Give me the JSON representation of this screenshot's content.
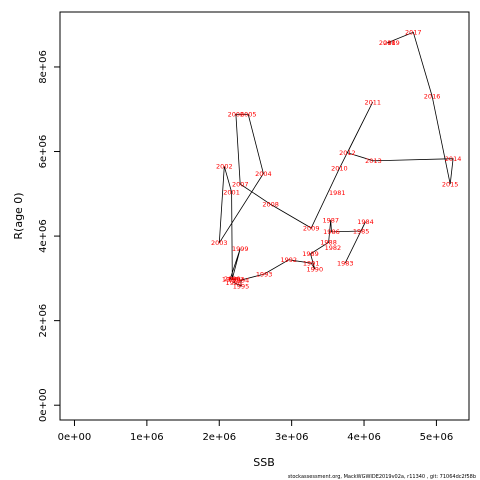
{
  "chart_data": {
    "type": "line",
    "title": "",
    "xlabel": "SSB",
    "ylabel": "R(age 0)",
    "xlim": [
      -200000,
      5450000
    ],
    "ylim": [
      -350000,
      9300000
    ],
    "x_ticks": [
      0,
      1000000,
      2000000,
      3000000,
      4000000,
      5000000
    ],
    "x_tick_labels": [
      "0e+00",
      "1e+06",
      "2e+06",
      "3e+06",
      "4e+06",
      "5e+06"
    ],
    "y_ticks": [
      0,
      2000000,
      4000000,
      6000000,
      8000000
    ],
    "y_tick_labels": [
      "0e+00",
      "2e+06",
      "4e+06",
      "6e+06",
      "8e+06"
    ],
    "grid": false,
    "legend": "none",
    "line_color": "#000000",
    "label_color": "#ff0000",
    "series": [
      {
        "points": [
          {
            "year": "1983",
            "x": 3740000,
            "y": 3360000
          },
          {
            "year": "1984",
            "x": 4020000,
            "y": 4340000
          },
          {
            "year": "1985",
            "x": 3960000,
            "y": 4120000
          },
          {
            "year": "1986",
            "x": 3550000,
            "y": 4100000
          },
          {
            "year": "1987",
            "x": 3540000,
            "y": 4380000
          },
          {
            "year": "1988",
            "x": 3510000,
            "y": 3850000
          },
          {
            "year": "1989",
            "x": 3260000,
            "y": 3580000
          },
          {
            "year": "1990",
            "x": 3320000,
            "y": 3220000
          },
          {
            "year": "1991",
            "x": 3270000,
            "y": 3360000
          },
          {
            "year": "1992",
            "x": 2960000,
            "y": 3440000
          },
          {
            "year": "1993",
            "x": 2620000,
            "y": 3100000
          },
          {
            "year": "1994",
            "x": 2300000,
            "y": 2960000
          },
          {
            "year": "1995",
            "x": 2300000,
            "y": 2820000
          },
          {
            "year": "1996",
            "x": 2200000,
            "y": 2900000
          },
          {
            "year": "1997",
            "x": 2230000,
            "y": 2980000
          },
          {
            "year": "1998",
            "x": 2150000,
            "y": 2980000
          },
          {
            "year": "1999",
            "x": 2290000,
            "y": 3700000
          },
          {
            "year": "2000",
            "x": 2180000,
            "y": 2990000
          },
          {
            "year": "2001",
            "x": 2170000,
            "y": 5040000
          },
          {
            "year": "2002",
            "x": 2070000,
            "y": 5650000
          },
          {
            "year": "2003",
            "x": 2000000,
            "y": 3840000
          },
          {
            "year": "2004",
            "x": 2610000,
            "y": 5480000
          },
          {
            "year": "2005",
            "x": 2400000,
            "y": 6880000
          },
          {
            "year": "2006",
            "x": 2230000,
            "y": 6880000
          },
          {
            "year": "2007",
            "x": 2290000,
            "y": 5230000
          },
          {
            "year": "2008",
            "x": 2710000,
            "y": 4750000
          },
          {
            "year": "2009",
            "x": 3270000,
            "y": 4190000
          },
          {
            "year": "2010",
            "x": 3660000,
            "y": 5600000
          },
          {
            "year": "2011",
            "x": 4120000,
            "y": 7170000
          },
          {
            "year": "2012",
            "x": 3770000,
            "y": 5970000
          },
          {
            "year": "2013",
            "x": 4130000,
            "y": 5780000
          },
          {
            "year": "2014",
            "x": 5230000,
            "y": 5830000
          },
          {
            "year": "2015",
            "x": 5190000,
            "y": 5230000
          },
          {
            "year": "2016",
            "x": 4940000,
            "y": 7310000
          },
          {
            "year": "2017",
            "x": 4680000,
            "y": 8820000
          },
          {
            "year": "2018",
            "x": 4320000,
            "y": 8570000
          },
          {
            "year": "2019",
            "x": 4380000,
            "y": 8570000
          },
          {
            "year": "1981",
            "x": 3630000,
            "y": 5030000
          },
          {
            "year": "1982",
            "x": 3570000,
            "y": 3720000
          }
        ],
        "path_order": [
          "1983",
          "1984",
          "1985",
          "1986",
          "1987",
          "1988",
          "1989",
          "1990",
          "1991",
          "1992",
          "1993",
          "1994",
          "1995",
          "1996",
          "1997",
          "1998",
          "1999",
          "2000",
          "2001",
          "2002",
          "2003",
          "2004",
          "2005",
          "2006",
          "2007",
          "2008",
          "2009",
          "2010",
          "2011",
          "2012",
          "2013",
          "2014",
          "2015",
          "2016",
          "2017",
          "2018",
          "2019"
        ]
      }
    ],
    "footnote": "stockassessment.org, MackWGWIDE2019v02a, r11340 , git: 71064dc2f58b"
  }
}
